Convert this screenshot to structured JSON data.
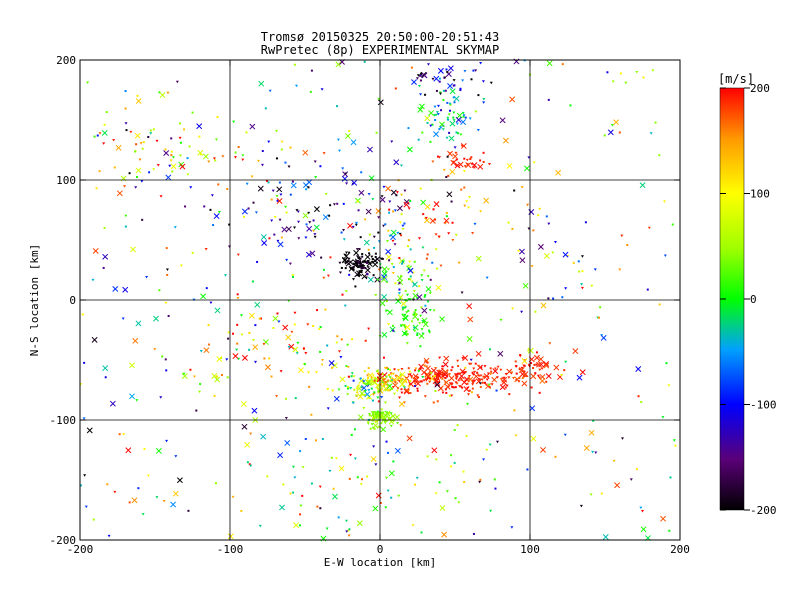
{
  "chart_data": {
    "type": "scatter",
    "title": "Tromsø 20150325 20:50:00-20:51:43",
    "subtitle": "RwPretec (8p) EXPERIMENTAL SKYMAP",
    "xlabel": "E-W location [km]",
    "ylabel": "N-S location [km]",
    "xlim": [
      -200,
      200
    ],
    "ylim": [
      -200,
      200
    ],
    "xticks": [
      -200,
      -100,
      0,
      100,
      200
    ],
    "yticks": [
      -200,
      -100,
      0,
      100,
      200
    ],
    "grid": true,
    "colorbar": {
      "label": "[m/s]",
      "range": [
        -200,
        200
      ],
      "ticks": [
        -200,
        -100,
        0,
        100,
        200
      ],
      "colormap": "rainbow (black-purple-blue-cyan-green-yellow-orange-red)"
    },
    "clusters": [
      {
        "x": -13,
        "y": 30,
        "sx": 6,
        "sy": 5,
        "n": 90,
        "v": -200,
        "vs": 15,
        "note": "dense dark cluster"
      },
      {
        "x": 45,
        "y": -65,
        "sx": 22,
        "sy": 8,
        "n": 220,
        "v": 190,
        "vs": 12,
        "note": "large red cluster"
      },
      {
        "x": 100,
        "y": -58,
        "sx": 10,
        "sy": 7,
        "n": 55,
        "v": 190,
        "vs": 10
      },
      {
        "x": 5,
        "y": -68,
        "sx": 12,
        "sy": 6,
        "n": 110,
        "v": 110,
        "vs": 60,
        "note": "mixed yellow/orange/green"
      },
      {
        "x": -10,
        "y": -73,
        "sx": 10,
        "sy": 6,
        "n": 50,
        "v": 20,
        "vs": 60
      },
      {
        "x": 0,
        "y": -98,
        "sx": 5,
        "sy": 4,
        "n": 80,
        "v": 45,
        "vs": 15,
        "note": "green cluster"
      },
      {
        "x": 20,
        "y": -15,
        "sx": 7,
        "sy": 10,
        "n": 70,
        "v": 10,
        "vs": 20,
        "note": "green/cyan column"
      },
      {
        "x": 15,
        "y": 25,
        "sx": 12,
        "sy": 22,
        "n": 70,
        "v": 0,
        "vs": 60
      },
      {
        "x": 45,
        "y": 155,
        "sx": 9,
        "sy": 10,
        "n": 60,
        "v": -30,
        "vs": 50,
        "note": "cyan cluster top"
      },
      {
        "x": 40,
        "y": 185,
        "sx": 15,
        "sy": 8,
        "n": 40,
        "v": -150,
        "vs": 50
      },
      {
        "x": 55,
        "y": 115,
        "sx": 9,
        "sy": 5,
        "n": 30,
        "v": 190,
        "vs": 10
      },
      {
        "x": -40,
        "y": 70,
        "sx": 35,
        "sy": 25,
        "n": 100,
        "v": -140,
        "vs": 60
      },
      {
        "x": -60,
        "y": -40,
        "sx": 30,
        "sy": 25,
        "n": 80,
        "v": 130,
        "vs": 90
      },
      {
        "x": 25,
        "y": 70,
        "sx": 30,
        "sy": 20,
        "n": 60,
        "v": 150,
        "vs": 60
      },
      {
        "x": -130,
        "y": 120,
        "sx": 40,
        "sy": 15,
        "n": 60,
        "v": 120,
        "vs": 80
      },
      {
        "x": 0,
        "y": -150,
        "sx": 50,
        "sy": 25,
        "n": 60,
        "v": 60,
        "vs": 100
      }
    ],
    "background_points": 450
  }
}
